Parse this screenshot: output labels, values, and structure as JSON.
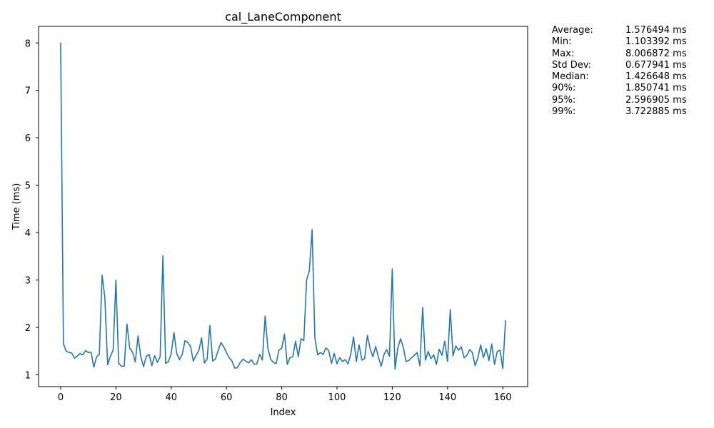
{
  "chart_data": {
    "type": "line",
    "title": "cal_LaneComponent",
    "xlabel": "Index",
    "ylabel": "Time (ms)",
    "xlim": [
      -8,
      169
    ],
    "ylim": [
      0.75,
      8.35
    ],
    "xticks": [
      0,
      20,
      40,
      60,
      80,
      100,
      120,
      140,
      160
    ],
    "yticks": [
      1,
      2,
      3,
      4,
      5,
      6,
      7,
      8
    ],
    "grid": false,
    "series_color": "#1f77b4",
    "series": [
      {
        "values": [
          8.01,
          1.65,
          1.5,
          1.47,
          1.46,
          1.35,
          1.39,
          1.45,
          1.42,
          1.51,
          1.47,
          1.48,
          1.16,
          1.38,
          1.43,
          3.1,
          2.62,
          1.21,
          1.39,
          1.52,
          3.0,
          1.24,
          1.18,
          1.18,
          2.07,
          1.56,
          1.48,
          1.27,
          1.82,
          1.38,
          1.17,
          1.39,
          1.43,
          1.19,
          1.4,
          1.26,
          1.38,
          3.51,
          1.24,
          1.28,
          1.44,
          1.89,
          1.45,
          1.32,
          1.43,
          1.72,
          1.68,
          1.6,
          1.29,
          1.41,
          1.51,
          1.78,
          1.25,
          1.33,
          2.04,
          1.29,
          1.33,
          1.51,
          1.68,
          1.59,
          1.47,
          1.36,
          1.29,
          1.14,
          1.15,
          1.26,
          1.33,
          1.29,
          1.25,
          1.32,
          1.22,
          1.23,
          1.43,
          1.31,
          2.24,
          1.56,
          1.33,
          1.26,
          1.24,
          1.52,
          1.56,
          1.86,
          1.22,
          1.36,
          1.38,
          1.71,
          1.38,
          1.76,
          1.72,
          3.0,
          3.2,
          4.06,
          1.78,
          1.42,
          1.47,
          1.43,
          1.57,
          1.51,
          1.24,
          1.45,
          1.23,
          1.36,
          1.28,
          1.32,
          1.23,
          1.44,
          1.8,
          1.28,
          1.63,
          1.31,
          1.34,
          1.83,
          1.55,
          1.38,
          1.6,
          1.37,
          1.18,
          1.43,
          1.53,
          1.39,
          3.23,
          1.12,
          1.56,
          1.76,
          1.58,
          1.28,
          1.3,
          1.36,
          1.41,
          1.47,
          1.19,
          2.42,
          1.31,
          1.49,
          1.34,
          1.42,
          1.22,
          1.54,
          1.41,
          1.71,
          1.28,
          2.37,
          1.4,
          1.61,
          1.52,
          1.59,
          1.36,
          1.41,
          1.53,
          1.47,
          1.19,
          1.36,
          1.63,
          1.36,
          1.55,
          1.3,
          1.65,
          1.22,
          1.49,
          1.52,
          1.13,
          2.15
        ]
      }
    ]
  },
  "stats": [
    {
      "label": "Average:",
      "value": "1.576494 ms"
    },
    {
      "label": "Min:",
      "value": "1.103392 ms"
    },
    {
      "label": "Max:",
      "value": "8.006872 ms"
    },
    {
      "label": "Std Dev:",
      "value": "0.677941 ms"
    },
    {
      "label": "Median:",
      "value": "1.426648 ms"
    },
    {
      "label": "90%:",
      "value": "1.850741 ms"
    },
    {
      "label": "95%:",
      "value": "2.596905 ms"
    },
    {
      "label": "99%:",
      "value": "3.722885 ms"
    }
  ]
}
